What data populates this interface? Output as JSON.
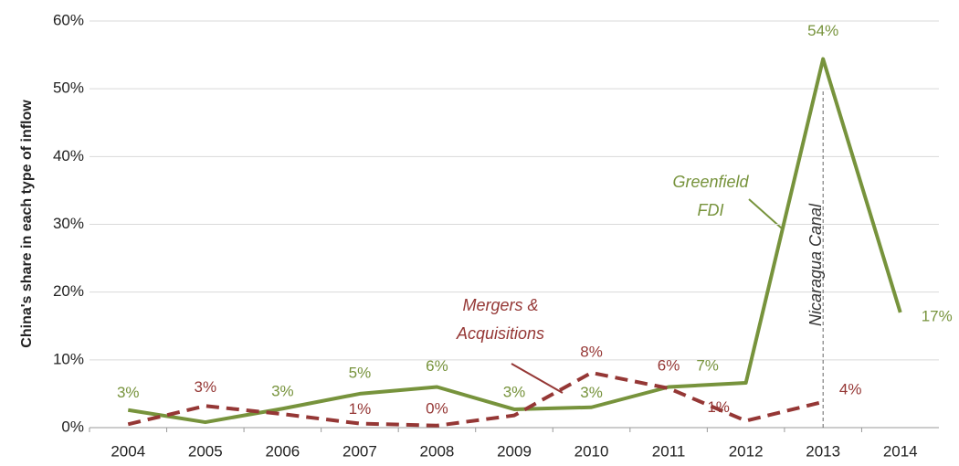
{
  "chart_data": {
    "type": "line",
    "y_axis_label": "China's share in each type of inflow",
    "categories": [
      "2004",
      "2005",
      "2006",
      "2007",
      "2008",
      "2009",
      "2010",
      "2011",
      "2012",
      "2013",
      "2014"
    ],
    "series": [
      {
        "color": "#77933c",
        "style": "solid",
        "values": [
          2.6,
          0.8,
          2.8,
          5.0,
          6.0,
          2.7,
          3.0,
          6.0,
          6.6,
          54.4,
          17.0
        ],
        "value_labels": [
          "3%",
          null,
          "3%",
          "5%",
          "6%",
          "3%",
          "3%",
          null,
          "7%",
          "54%",
          "17%"
        ]
      },
      {
        "color": "#953735",
        "style": "dashed",
        "values": [
          0.5,
          3.2,
          2.0,
          0.6,
          0.3,
          1.8,
          8.1,
          5.8,
          1.0,
          3.8,
          null
        ],
        "value_labels": [
          null,
          "3%",
          null,
          "1%",
          "0%",
          null,
          "8%",
          "6%",
          "1%",
          "4%",
          null
        ]
      }
    ],
    "ylim": [
      0,
      60
    ],
    "yticks": [
      {
        "value": 0,
        "label": "0%"
      },
      {
        "value": 10,
        "label": "10%"
      },
      {
        "value": 20,
        "label": "20%"
      },
      {
        "value": 30,
        "label": "30%"
      },
      {
        "value": 40,
        "label": "40%"
      },
      {
        "value": 50,
        "label": "50%"
      },
      {
        "value": 60,
        "label": "60%"
      }
    ],
    "grid": true,
    "annotations": [
      {
        "lines": [
          "Greenfield",
          "FDI"
        ],
        "color": "#77933c"
      },
      {
        "lines": [
          "Mergers &",
          "Acquisitions"
        ],
        "color": "#953735"
      },
      {
        "lines": [
          "Nicaragua Canal"
        ],
        "color": "#333333"
      }
    ]
  }
}
